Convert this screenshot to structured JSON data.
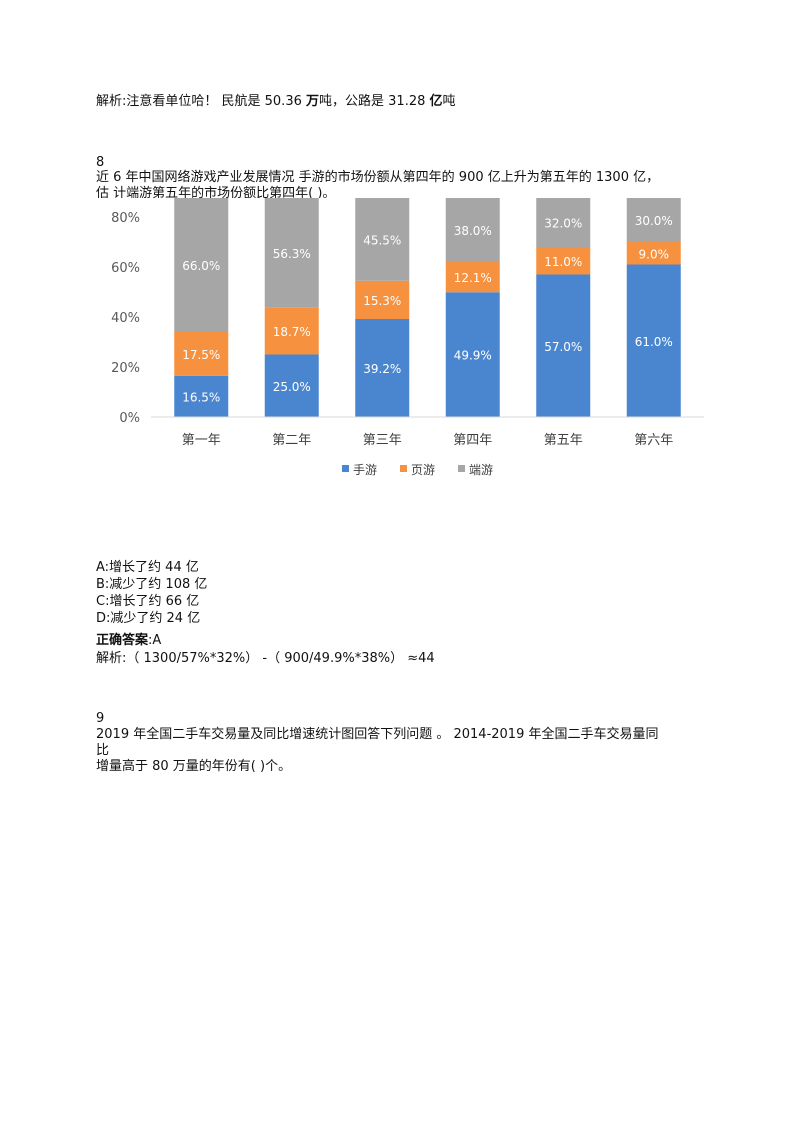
{
  "prev": {
    "analysis_prefix": "解析:注意看单位哈！ 民航是 50.36 ",
    "unit1": "万",
    "mid": "吨，公路是 31.28 ",
    "unit2": "亿",
    "suffix": "吨"
  },
  "q8": {
    "number": "8",
    "stem_line1": "近 6 年中国网络游戏产业发展情况  手游的市场份额从第四年的 900 亿上升为第五年的 1300 亿，",
    "stem_line2": "估 计端游第五年的市场份额比第四年(  )。",
    "options": [
      "A:增长了约 44 亿",
      "B:减少了约 108 亿",
      "C:增长了约 66 亿",
      "D:减少了约 24 亿"
    ],
    "answer_label": "正确答案",
    "answer_value": ":A",
    "analysis": "解析:（ 1300/57%*32%） -（ 900/49.9%*38%） ≈44"
  },
  "q9": {
    "number": "9",
    "stem_line1": "2019 年全国二手车交易量及同比增速统计图回答下列问题 。  2014-2019 年全国二手车交易量同",
    "stem_line2": "比",
    "stem_line3": "增量高于 80 万量的年份有(  )个。"
  },
  "chart_data": {
    "type": "bar",
    "stacked": true,
    "categories": [
      "第一年",
      "第二年",
      "第三年",
      "第四年",
      "第五年",
      "第六年"
    ],
    "series": [
      {
        "name": "手游",
        "color": "#4a86d0",
        "values": [
          16.5,
          25.0,
          39.2,
          49.9,
          57.0,
          61.0
        ],
        "labels": [
          "16.5%",
          "25.0%",
          "39.2%",
          "49.9%",
          "57.0%",
          "61.0%"
        ]
      },
      {
        "name": "页游",
        "color": "#f5913f",
        "values": [
          17.5,
          18.7,
          15.3,
          12.1,
          11.0,
          9.0
        ],
        "labels": [
          "17.5%",
          "18.7%",
          "15.3%",
          "12.1%",
          "11.0%",
          "9.0%"
        ]
      },
      {
        "name": "端游",
        "color": "#a6a6a6",
        "values": [
          66.0,
          56.3,
          45.5,
          38.0,
          32.0,
          30.0
        ],
        "labels": [
          "66.0%",
          "56.3%",
          "45.5%",
          "38.0%",
          "32.0%",
          "30.0%"
        ]
      }
    ],
    "y_ticks": [
      "0%",
      "20%",
      "40%",
      "60%",
      "80%"
    ],
    "ylim": [
      0,
      100
    ],
    "legend_position": "bottom",
    "grid": false
  }
}
